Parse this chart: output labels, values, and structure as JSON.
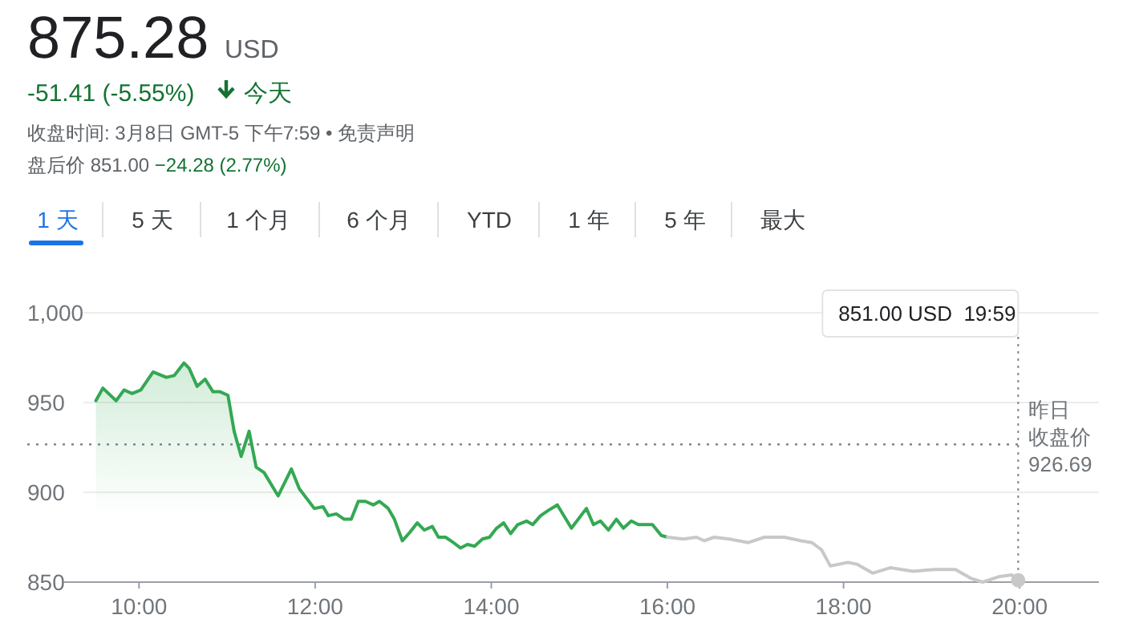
{
  "chart_data": {
    "type": "line",
    "title": "875.28",
    "annotations": [
      "USD",
      "-51.41 (-5.55%)",
      "今天",
      "收盘时间: 3月8日 GMT-5 下午7:59 • 免责声明",
      "盘后价 851.00",
      "−24.28 (2.77%)",
      "1 天",
      "5 天",
      "1 个月",
      "6 个月",
      "YTD",
      "1 年",
      "5 年",
      "最大",
      {
        "text": "851.00 USD  19:59",
        "x": 19.983,
        "y": 851
      }
    ],
    "xlim": [
      9.15,
      20.9
    ],
    "xticks": [
      {
        "value": 10,
        "label": "10:00"
      },
      {
        "value": 12,
        "label": "12:00"
      },
      {
        "value": 14,
        "label": "14:00"
      },
      {
        "value": 16,
        "label": "16:00"
      },
      {
        "value": 18,
        "label": "18:00"
      },
      {
        "value": 20,
        "label": "20:00"
      }
    ],
    "ylim": [
      850,
      1000
    ],
    "yticks": [
      850,
      900,
      950,
      {
        "value": 1000,
        "label": "1,000"
      }
    ],
    "grid": "y",
    "ref_lines": [
      {
        "axis": "y",
        "value": 926.69,
        "label": "昨日收盘价\n926.69",
        "line_style": "dotted",
        "color": "#80868b"
      }
    ],
    "series": [
      {
        "type": "area",
        "color": "#34a853",
        "x": [
          9.51,
          9.59,
          9.74,
          9.83,
          9.92,
          10.02,
          10.16,
          10.31,
          10.4,
          10.51,
          10.57,
          10.66,
          10.75,
          10.84,
          10.92,
          11.01,
          11.08,
          11.16,
          11.25,
          11.33,
          11.42,
          11.58,
          11.73,
          11.82,
          11.99,
          12.09,
          12.15,
          12.24,
          12.33,
          12.41,
          12.49,
          12.57,
          12.66,
          12.73,
          12.83,
          12.9,
          12.99,
          13.08,
          13.16,
          13.24,
          13.33,
          13.4,
          13.48,
          13.57,
          13.65,
          13.73,
          13.81,
          13.9,
          13.98,
          14.06,
          14.14,
          14.22,
          14.3,
          14.4,
          14.47,
          14.56,
          14.65,
          14.75,
          14.91,
          15.08,
          15.16,
          15.24,
          15.33,
          15.42,
          15.5,
          15.59,
          15.67,
          15.83,
          15.93,
          16
        ],
        "values": [
          951,
          958,
          951,
          957,
          955,
          957,
          967,
          964,
          965,
          972,
          969,
          959,
          963,
          956,
          956,
          954,
          934,
          920,
          934,
          914,
          911,
          898,
          913,
          902,
          891,
          892,
          887,
          888,
          885,
          885,
          895,
          895,
          893,
          895,
          891,
          885,
          873,
          878,
          883,
          879,
          881,
          875,
          875,
          872,
          869,
          871,
          870,
          874,
          875,
          880,
          883,
          877,
          882,
          884,
          882,
          887,
          890,
          893,
          880,
          891,
          882,
          884,
          879,
          885,
          880,
          884,
          882,
          882,
          876,
          875
        ]
      },
      {
        "color": "#c8c8c8",
        "x": [
          16,
          16.18,
          16.33,
          16.42,
          16.53,
          16.7,
          16.92,
          17.1,
          17.33,
          17.52,
          17.64,
          17.75,
          17.85,
          18.05,
          18.15,
          18.33,
          18.53,
          18.79,
          19.03,
          19.27,
          19.45,
          19.58,
          19.76,
          19.91,
          19.983
        ],
        "values": [
          875,
          874,
          875,
          873,
          875,
          874,
          872,
          875,
          875,
          873,
          872,
          868,
          859,
          861,
          860,
          855,
          858,
          856,
          857,
          857,
          852,
          850,
          853,
          854,
          851
        ]
      }
    ]
  }
}
